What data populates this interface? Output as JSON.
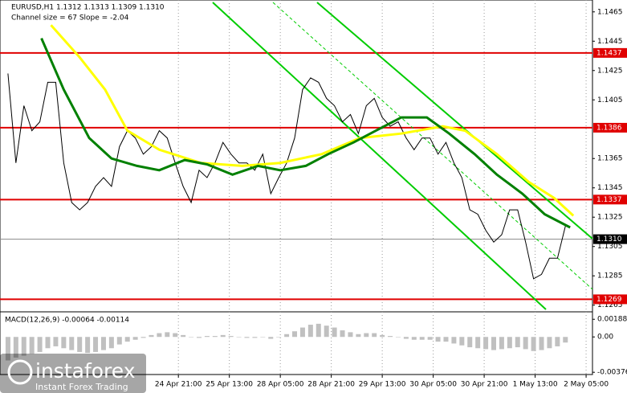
{
  "chart_data": [
    {
      "type": "line",
      "title": "EURUSD,H1  1.1312 1.1313 1.1309 1.1310",
      "subtitle": "Channel size = 67 Slope = -2.04",
      "xlim": [
        0,
        186
      ],
      "xticks": [
        {
          "value": 56,
          "label": "24 Apr 21:00"
        },
        {
          "value": 72,
          "label": "25 Apr 13:00"
        },
        {
          "value": 88,
          "label": "28 Apr 05:00"
        },
        {
          "value": 104,
          "label": "28 Apr 21:00"
        },
        {
          "value": 120,
          "label": "29 Apr 13:00"
        },
        {
          "value": 136,
          "label": "30 Apr 05:00"
        },
        {
          "value": 152,
          "label": "30 Apr 21:00"
        },
        {
          "value": 168,
          "label": "1 May 13:00"
        },
        {
          "value": 184,
          "label": "2 May 05:00"
        }
      ],
      "grid": "x",
      "x": [
        2.5,
        5,
        7.5,
        10,
        12.5,
        15,
        17.5,
        20,
        22.5,
        25,
        27.5,
        30,
        32.5,
        35,
        37.5,
        40,
        42.5,
        45,
        47.5,
        50,
        52.5,
        55,
        57.5,
        60,
        62.5,
        65,
        67.5,
        70,
        72.5,
        75,
        77.5,
        80,
        82.5,
        85,
        87.5,
        90,
        92.5,
        95,
        97.5,
        100,
        102.5,
        105,
        107.5,
        110,
        112.5,
        115,
        117.5,
        120,
        122.5,
        125,
        127.5,
        130,
        132.5,
        135,
        137.5,
        140,
        142.5,
        145,
        147.5,
        150,
        152.5,
        155,
        157.5,
        160,
        162.5,
        165,
        167.5,
        170,
        172.5,
        175,
        177.5
      ],
      "ylim": [
        1.1261,
        1.1472
      ],
      "yticks": [
        1.1465,
        1.1445,
        1.1425,
        1.1405,
        1.1365,
        1.1345,
        1.1325,
        1.1305,
        1.1285,
        1.1265
      ],
      "series": [
        {
          "color": "#000000",
          "values": [
            1.1423,
            1.1362,
            1.1401,
            1.1384,
            1.139,
            1.1417,
            1.1417,
            1.1362,
            1.1335,
            1.133,
            1.1335,
            1.1346,
            1.1352,
            1.1346,
            1.1373,
            1.1384,
            1.1379,
            1.1368,
            1.1373,
            1.1384,
            1.1379,
            1.1362,
            1.1346,
            1.1335,
            1.1357,
            1.1352,
            1.1362,
            1.1376,
            1.1368,
            1.1362,
            1.1362,
            1.1357,
            1.1368,
            1.1341,
            1.1352,
            1.1362,
            1.1379,
            1.1412,
            1.142,
            1.1417,
            1.1406,
            1.1401,
            1.139,
            1.1395,
            1.1382,
            1.1401,
            1.1406,
            1.1393,
            1.1387,
            1.139,
            1.1379,
            1.1371,
            1.1379,
            1.1379,
            1.1368,
            1.1376,
            1.1362,
            1.1352,
            1.133,
            1.1327,
            1.1316,
            1.1308,
            1.1313,
            1.133,
            1.133,
            1.1308,
            1.1283,
            1.1286,
            1.1297,
            1.1297,
            1.1319
          ]
        },
        {
          "color": "#ffff00",
          "x": [
            16,
            25,
            33,
            40,
            50,
            63,
            76,
            88,
            101,
            113,
            126,
            139,
            146,
            156,
            166,
            174,
            180
          ],
          "values": [
            1.1456,
            1.1434,
            1.1412,
            1.1384,
            1.1371,
            1.1362,
            1.136,
            1.1362,
            1.1368,
            1.1379,
            1.1382,
            1.1387,
            1.1384,
            1.1368,
            1.1349,
            1.1338,
            1.1326
          ]
        },
        {
          "color": "#008000",
          "x": [
            13,
            20,
            28,
            35,
            43,
            50,
            58,
            65,
            73,
            81,
            88,
            96,
            103,
            111,
            118,
            126,
            134,
            141,
            149,
            156,
            164,
            171,
            179
          ],
          "values": [
            1.1447,
            1.1412,
            1.1379,
            1.1365,
            1.136,
            1.1357,
            1.1364,
            1.1361,
            1.1354,
            1.136,
            1.1357,
            1.136,
            1.1368,
            1.1376,
            1.1384,
            1.1393,
            1.1393,
            1.1382,
            1.1368,
            1.1354,
            1.1341,
            1.1327,
            1.1318
          ]
        }
      ],
      "levels": [
        1.1437,
        1.1386,
        1.1337,
        1.1269
      ],
      "level_color": "#e00000",
      "last_price": {
        "value": 1.131,
        "label": "1.1310"
      }
    },
    {
      "type": "bar",
      "title": "MACD(12,26,9) -0.00064 -0.00114",
      "x": [
        2.5,
        5,
        7.5,
        10,
        12.5,
        15,
        17.5,
        20,
        22.5,
        25,
        27.5,
        30,
        32.5,
        35,
        37.5,
        40,
        42.5,
        45,
        47.5,
        50,
        52.5,
        55,
        57.5,
        60,
        62.5,
        65,
        67.5,
        70,
        72.5,
        75,
        77.5,
        80,
        82.5,
        85,
        87.5,
        90,
        92.5,
        95,
        97.5,
        100,
        102.5,
        105,
        107.5,
        110,
        112.5,
        115,
        117.5,
        120,
        122.5,
        125,
        127.5,
        130,
        132.5,
        135,
        137.5,
        140,
        142.5,
        145,
        147.5,
        150,
        152.5,
        155,
        157.5,
        160,
        162.5,
        165,
        167.5,
        170,
        172.5,
        175,
        177.5
      ],
      "xlim": [
        0,
        186
      ],
      "values": [
        -0.0025,
        -0.0022,
        -0.002,
        -0.0018,
        -0.0016,
        -0.0012,
        -0.001,
        -0.0012,
        -0.0014,
        -0.0016,
        -0.0017,
        -0.0016,
        -0.0014,
        -0.0012,
        -0.0008,
        -0.0005,
        -0.0003,
        -0.0001,
        0.0002,
        0.0004,
        0.0005,
        0.0004,
        0.0002,
        0.0,
        -0.0001,
        0.0001,
        0.0001,
        0.0002,
        0.0001,
        0.0,
        -0.0001,
        -0.0001,
        0.0,
        -0.0002,
        0.0,
        0.0003,
        0.0006,
        0.001,
        0.0013,
        0.0014,
        0.0012,
        0.001,
        0.0007,
        0.0005,
        0.0003,
        0.0004,
        0.0004,
        0.0002,
        0.0001,
        0.0,
        -0.0002,
        -0.0003,
        -0.0003,
        -0.0003,
        -0.0005,
        -0.0005,
        -0.0007,
        -0.0009,
        -0.0011,
        -0.0012,
        -0.0013,
        -0.0014,
        -0.0013,
        -0.0012,
        -0.0011,
        -0.0013,
        -0.0015,
        -0.0014,
        -0.0012,
        -0.001,
        -0.0006
      ],
      "color": "#c0c0c0",
      "ylim": [
        -0.004,
        0.0025
      ],
      "yticks": [
        0.00188,
        {
          "value": 0,
          "label": "0.00"
        },
        -0.00376
      ]
    }
  ],
  "watermark": {
    "brand": "instaforex",
    "tagline": "Instant Forex Trading"
  }
}
